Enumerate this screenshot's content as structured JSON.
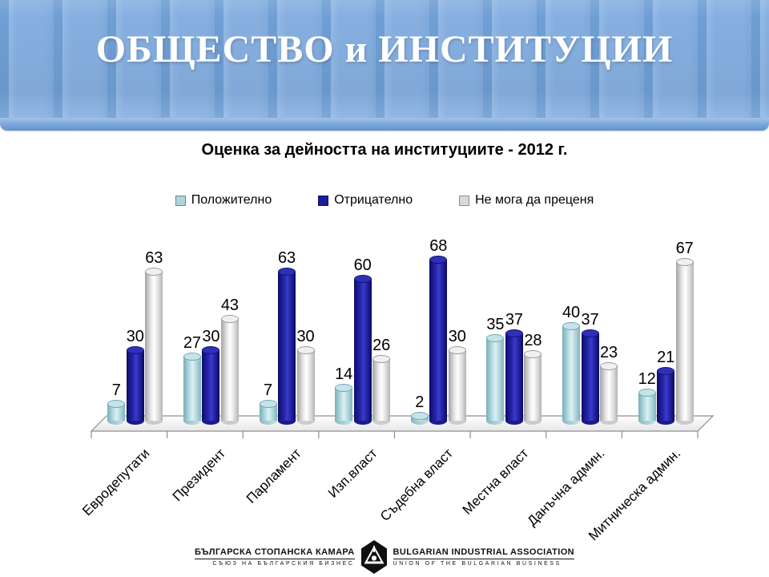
{
  "slide": {
    "title": "ОБЩЕСТВО и ИНСТИТУЦИИ"
  },
  "chart": {
    "title": "Оценка за дейността на институциите  - 2012 г."
  },
  "chart_data": {
    "type": "bar",
    "style": "3d-cylinder",
    "title": "Оценка за дейността на институциите - 2012 г.",
    "categories": [
      "Евродепутати",
      "Президент",
      "Парламент",
      "Изп.власт",
      "Съдебна власт",
      "Местна власт",
      "Данъчна админ.",
      "Митническа админ."
    ],
    "series": [
      {
        "name": "Положително",
        "color": "#aed3da",
        "values": [
          7,
          27,
          7,
          14,
          2,
          35,
          40,
          12
        ]
      },
      {
        "name": "Отрицателно",
        "color": "#1c1c9a",
        "values": [
          30,
          30,
          63,
          60,
          68,
          37,
          37,
          21
        ]
      },
      {
        "name": "Не мога да преценя",
        "color": "#d9d9d9",
        "values": [
          63,
          43,
          30,
          26,
          30,
          28,
          23,
          67
        ]
      }
    ],
    "value_labels": true,
    "legend_position": "top",
    "xlabel": "",
    "ylabel": "",
    "ylim": [
      0,
      75
    ],
    "grid": false,
    "axes_visible": false
  },
  "colors": {
    "header_blue": "#86afe0",
    "header_stripe_gap": "#6f9ed3",
    "series_positive": "#aed3da",
    "series_negative": "#1c1c9a",
    "series_neutral": "#d9d9d9"
  },
  "footer": {
    "left_line1": "БЪЛГАРСКА СТОПАНСКА КАМАРА",
    "left_line2": "СЪЮЗ НА БЪЛГАРСКИЯ БИЗНЕС",
    "right_line1": "BULGARIAN INDUSTRIAL ASSOCIATION",
    "right_line2": "UNION OF THE BULGARIAN BUSINESS",
    "logo": "bia-hexagon-logo"
  }
}
